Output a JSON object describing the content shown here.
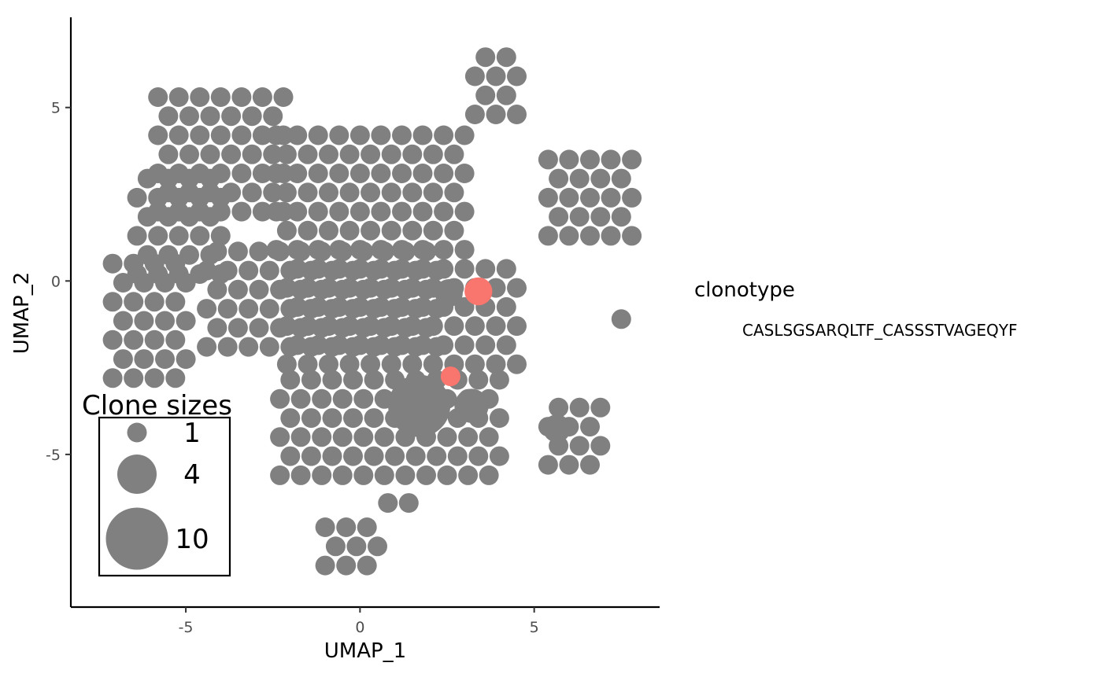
{
  "chart_data": {
    "type": "scatter",
    "xlabel": "UMAP_1",
    "ylabel": "UMAP_2",
    "xlim": [
      -8.3,
      8.6
    ],
    "ylim": [
      -9.4,
      7.6
    ],
    "x_ticks": [
      -5,
      0,
      5
    ],
    "x_tick_labels": [
      "-5",
      "0",
      "5"
    ],
    "y_ticks": [
      -5,
      0,
      5
    ],
    "y_tick_labels": [
      "-5",
      "0",
      "5"
    ],
    "grid": false,
    "point_color": "#808080",
    "highlight_color": "#f8766d",
    "legend": {
      "title": "clonotype",
      "entries": [
        "CASLSGSARQLTF_CASSSTVAGEQYF"
      ],
      "placement": "right"
    },
    "size_legend": {
      "title": "Clone sizes",
      "sizes": [
        1,
        4,
        10
      ],
      "labels": [
        "1",
        "4",
        "10"
      ],
      "placement": "inside-bottom-left"
    },
    "highlighted_points": [
      {
        "x": 3.4,
        "y": -0.3,
        "size": 2,
        "clonotype": "CASLSGSARQLTF_CASSSTVAGEQYF"
      },
      {
        "x": 2.6,
        "y": -2.75,
        "size": 1,
        "clonotype": "CASLSGSARQLTF_CASSSTVAGEQYF"
      }
    ],
    "large_points": [
      {
        "x": 1.7,
        "y": -3.6,
        "size": 10
      },
      {
        "x": 3.2,
        "y": -3.6,
        "size": 3
      },
      {
        "x": 2.55,
        "y": -0.35,
        "size": 2
      },
      {
        "x": 5.65,
        "y": -4.25,
        "size": 2
      }
    ],
    "clusters": [
      {
        "xs": [
          -7.1,
          -4.8
        ],
        "ys": [
          -2.8,
          0.9
        ],
        "clone_size": 1
      },
      {
        "xs": [
          -6.4,
          -3.9
        ],
        "ys": [
          0.2,
          3.0
        ],
        "clone_size": 1
      },
      {
        "xs": [
          -5.8,
          -2.0
        ],
        "ys": [
          2.0,
          5.3
        ],
        "clone_size": 1
      },
      {
        "xs": [
          -4.4,
          2.4
        ],
        "ys": [
          -1.9,
          0.9
        ],
        "clone_size": 1
      },
      {
        "xs": [
          -2.4,
          3.0
        ],
        "ys": [
          0.9,
          4.7
        ],
        "clone_size": 1
      },
      {
        "xs": [
          -2.1,
          4.5
        ],
        "ys": [
          -2.4,
          0.6
        ],
        "clone_size": 1
      },
      {
        "xs": [
          -2.3,
          4.1
        ],
        "ys": [
          -5.6,
          -2.4
        ],
        "clone_size": 1
      },
      {
        "xs": [
          3.3,
          4.7
        ],
        "ys": [
          4.8,
          6.6
        ],
        "clone_size": 1
      },
      {
        "xs": [
          5.4,
          7.8
        ],
        "ys": [
          1.3,
          3.9
        ],
        "clone_size": 1
      },
      {
        "xs": [
          5.4,
          7.1
        ],
        "ys": [
          -5.3,
          -3.5
        ],
        "clone_size": 1
      },
      {
        "xs": [
          -1.0,
          0.6
        ],
        "ys": [
          -8.2,
          -6.7
        ],
        "clone_size": 1
      },
      {
        "xs": [
          0.8,
          1.5
        ],
        "ys": [
          -6.4,
          -5.9
        ],
        "clone_size": 1
      },
      {
        "xs": [
          7.5,
          7.5
        ],
        "ys": [
          -1.1,
          -1.1
        ],
        "clone_size": 1
      }
    ]
  }
}
